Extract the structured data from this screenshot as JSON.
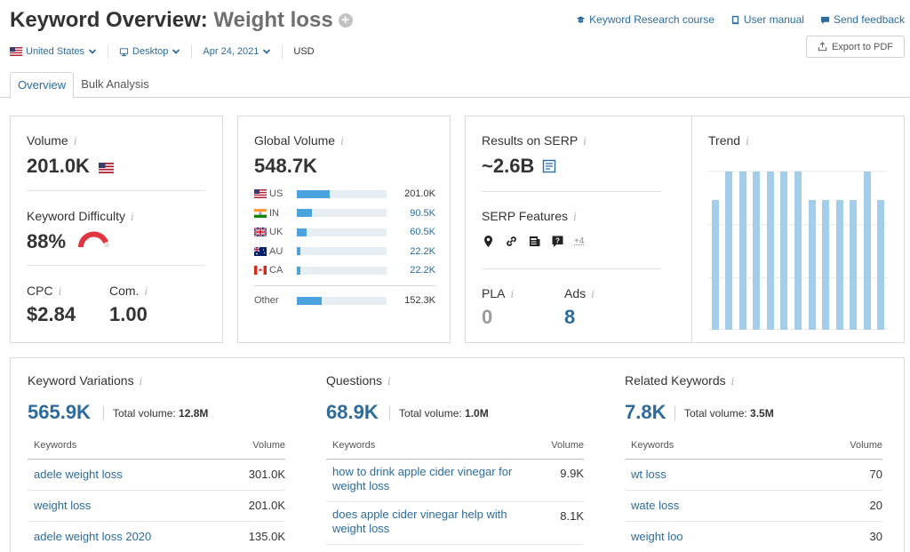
{
  "header": {
    "title_prefix": "Keyword Overview:",
    "title_keyword": "Weight loss",
    "links": {
      "course": "Keyword Research course",
      "manual": "User manual",
      "feedback": "Send feedback"
    },
    "export_label": "Export to PDF",
    "filters": {
      "country": "United States",
      "device": "Desktop",
      "date": "Apr 24, 2021",
      "currency": "USD"
    }
  },
  "tabs": [
    "Overview",
    "Bulk Analysis"
  ],
  "volume": {
    "label": "Volume",
    "value": "201.0K"
  },
  "difficulty": {
    "label": "Keyword Difficulty",
    "value": "88%",
    "percent": 88,
    "color": "#e0353e"
  },
  "cpc": {
    "label": "CPC",
    "value": "$2.84"
  },
  "com": {
    "label": "Com.",
    "value": "1.00"
  },
  "global_volume": {
    "label": "Global Volume",
    "value": "548.7K",
    "rows": [
      {
        "code": "US",
        "value": "201.0K",
        "share": 0.37
      },
      {
        "code": "IN",
        "value": "90.5K",
        "share": 0.17
      },
      {
        "code": "UK",
        "value": "60.5K",
        "share": 0.11
      },
      {
        "code": "AU",
        "value": "22.2K",
        "share": 0.04
      },
      {
        "code": "CA",
        "value": "22.2K",
        "share": 0.04
      }
    ],
    "other": {
      "code": "Other",
      "value": "152.3K",
      "share": 0.28
    },
    "bar_color": "#4ba3dd"
  },
  "serp": {
    "results_label": "Results on SERP",
    "results_value": "~2.6B",
    "features_label": "SERP Features",
    "features_icons": [
      "map-pin-icon",
      "link-icon",
      "news-icon",
      "question-icon"
    ],
    "features_more": "+4",
    "pla_label": "PLA",
    "pla_value": "0",
    "ads_label": "Ads",
    "ads_value": "8"
  },
  "trend": {
    "label": "Trend",
    "values": [
      0.82,
      1.0,
      1.0,
      1.0,
      1.0,
      1.0,
      1.0,
      0.82,
      0.82,
      0.82,
      0.82,
      1.0,
      0.82
    ],
    "color": "#a4cdea"
  },
  "variations": {
    "title": "Keyword Variations",
    "count": "565.9K",
    "total_label": "Total volume:",
    "total_value": "12.8M",
    "col_keywords": "Keywords",
    "col_volume": "Volume",
    "rows": [
      {
        "keyword": "adele weight loss",
        "volume": "301.0K"
      },
      {
        "keyword": "weight loss",
        "volume": "201.0K"
      },
      {
        "keyword": "adele weight loss 2020",
        "volume": "135.0K"
      }
    ]
  },
  "questions": {
    "title": "Questions",
    "count": "68.9K",
    "total_label": "Total volume:",
    "total_value": "1.0M",
    "col_keywords": "Keywords",
    "col_volume": "Volume",
    "rows": [
      {
        "keyword": "how to drink apple cider vinegar for weight loss",
        "volume": "9.9K"
      },
      {
        "keyword": "does apple cider vinegar help with weight loss",
        "volume": "8.1K"
      }
    ]
  },
  "related": {
    "title": "Related Keywords",
    "count": "7.8K",
    "total_label": "Total volume:",
    "total_value": "3.5M",
    "col_keywords": "Keywords",
    "col_volume": "Volume",
    "rows": [
      {
        "keyword": "wt loss",
        "volume": "70"
      },
      {
        "keyword": "wate loss",
        "volume": "20"
      },
      {
        "keyword": "weight loo",
        "volume": "30"
      }
    ]
  },
  "colors": {
    "accent": "#2d6b9d",
    "link": "#2d6b9d"
  }
}
